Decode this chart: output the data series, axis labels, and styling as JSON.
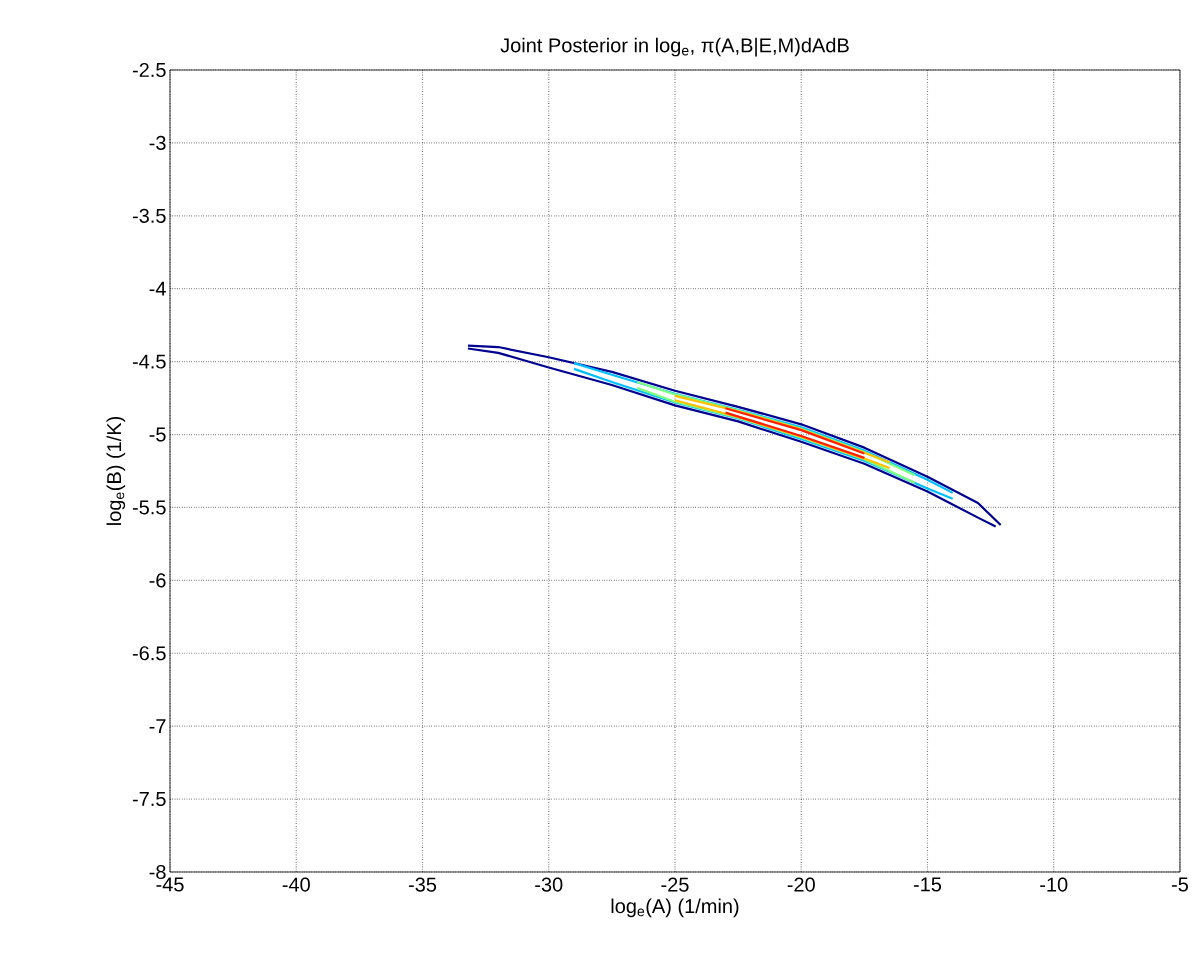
{
  "chart_data": {
    "type": "line",
    "title": "Joint Posterior in log$_{e}$, π(A,B|E,M)dAdB",
    "xlabel": "log$_{e}$(A) (1/min)",
    "ylabel": "log$_{e}$(B) (1/K)",
    "xlim": [
      -45,
      -5
    ],
    "ylim": [
      -8,
      -2.5
    ],
    "xticks": [
      -45,
      -40,
      -35,
      -30,
      -25,
      -20,
      -15,
      -10,
      -5
    ],
    "yticks": [
      -8,
      -7.5,
      -7,
      -6.5,
      -6,
      -5.5,
      -5,
      -4.5,
      -4,
      -3.5,
      -3,
      -2.5
    ],
    "grid": true,
    "marker": "none",
    "line_style": "solid",
    "series": [
      {
        "color": "#00008f",
        "x": [
          -33.2,
          -32,
          -30,
          -27.5,
          -25,
          -22.5,
          -20,
          -17.5,
          -15,
          -13,
          -12.1
        ],
        "values": [
          -4.39,
          -4.4,
          -4.47,
          -4.57,
          -4.7,
          -4.81,
          -4.93,
          -5.09,
          -5.29,
          -5.47,
          -5.62
        ]
      },
      {
        "color": "#00008f",
        "x": [
          -33.2,
          -32,
          -30,
          -27.5,
          -25,
          -22.5,
          -20,
          -17.5,
          -15,
          -13,
          -12.3
        ],
        "values": [
          -4.41,
          -4.44,
          -4.54,
          -4.66,
          -4.8,
          -4.91,
          -5.05,
          -5.2,
          -5.39,
          -5.57,
          -5.63
        ]
      },
      {
        "color": "#00bfff",
        "x": [
          -29,
          -27.5,
          -25,
          -22.5,
          -20,
          -17.5,
          -15,
          -14
        ],
        "values": [
          -4.51,
          -4.59,
          -4.72,
          -4.83,
          -4.95,
          -5.11,
          -5.31,
          -5.4
        ]
      },
      {
        "color": "#00bfff",
        "x": [
          -29,
          -27.5,
          -25,
          -22.5,
          -20,
          -17.5,
          -15,
          -14
        ],
        "values": [
          -4.55,
          -4.64,
          -4.78,
          -4.89,
          -5.03,
          -5.18,
          -5.37,
          -5.44
        ]
      },
      {
        "color": "#80ff80",
        "x": [
          -26.5,
          -25,
          -22.5,
          -20,
          -17.5,
          -15.5
        ],
        "values": [
          -4.64,
          -4.725,
          -4.835,
          -4.96,
          -5.12,
          -5.28
        ]
      },
      {
        "color": "#80ff80",
        "x": [
          -26.5,
          -25,
          -22.5,
          -20,
          -17.5,
          -15.5
        ],
        "values": [
          -4.68,
          -4.775,
          -4.885,
          -5.02,
          -5.17,
          -5.33
        ]
      },
      {
        "color": "#ffbf00",
        "x": [
          -25,
          -22.5,
          -20,
          -17.5,
          -16.5
        ],
        "values": [
          -4.735,
          -4.84,
          -4.965,
          -5.125,
          -5.19
        ]
      },
      {
        "color": "#ffbf00",
        "x": [
          -25,
          -22.5,
          -20,
          -17.5,
          -16.5
        ],
        "values": [
          -4.765,
          -4.88,
          -5.015,
          -5.165,
          -5.23
        ]
      },
      {
        "color": "#ff2000",
        "x": [
          -23,
          -20,
          -17.5
        ],
        "values": [
          -4.82,
          -4.97,
          -5.13
        ]
      },
      {
        "color": "#ff2000",
        "x": [
          -23,
          -20,
          -17.5
        ],
        "values": [
          -4.85,
          -5.01,
          -5.16
        ]
      }
    ]
  }
}
